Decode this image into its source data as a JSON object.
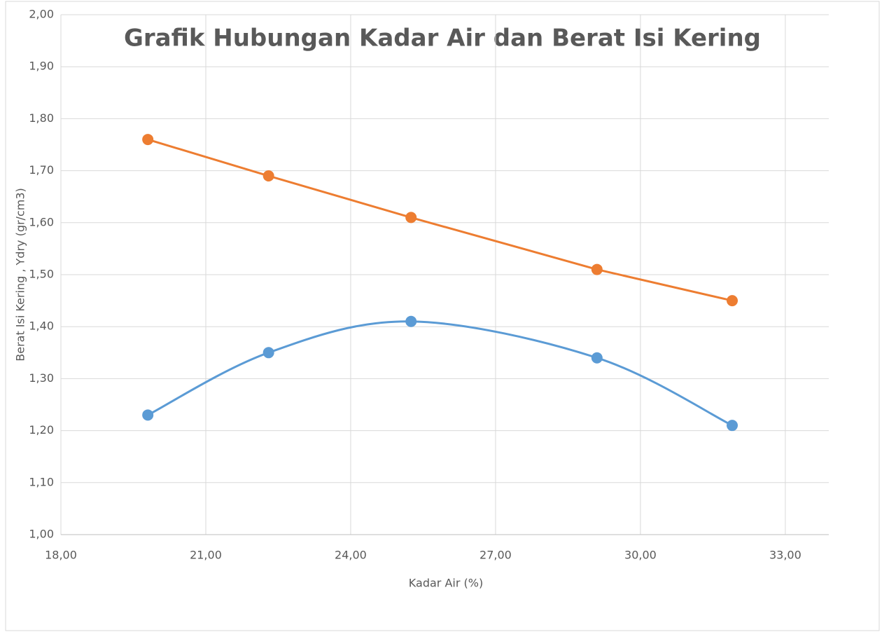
{
  "chart_data": {
    "type": "scatter",
    "title": "Grafik Hubungan Kadar Air dan Berat Isi Kering",
    "x_label": "Kadar Air (%)",
    "y_label": "Berat Isi Kering , Ydry (gr/cm3)",
    "series": [
      {
        "color": "#ed7d31",
        "smooth": false,
        "x": [
          19.8,
          22.3,
          25.25,
          29.1,
          31.9
        ],
        "values": [
          1.76,
          1.69,
          1.61,
          1.51,
          1.45
        ]
      },
      {
        "color": "#5b9bd5",
        "smooth": true,
        "x": [
          19.8,
          22.3,
          25.25,
          29.1,
          31.9
        ],
        "values": [
          1.23,
          1.35,
          1.41,
          1.34,
          1.21
        ]
      }
    ],
    "xlim": [
      18,
      33.9
    ],
    "xticks": [
      {
        "value": 18,
        "label": "18,00"
      },
      {
        "value": 21,
        "label": "21,00"
      },
      {
        "value": 24,
        "label": "24,00"
      },
      {
        "value": 27,
        "label": "27,00"
      },
      {
        "value": 30,
        "label": "30,00"
      },
      {
        "value": 33,
        "label": "33,00"
      }
    ],
    "ylim": [
      1,
      2
    ],
    "yticks": [
      {
        "value": 1,
        "label": "1,00"
      },
      {
        "value": 1.1,
        "label": "1,10"
      },
      {
        "value": 1.2,
        "label": "1,20"
      },
      {
        "value": 1.3,
        "label": "1,30"
      },
      {
        "value": 1.4,
        "label": "1,40"
      },
      {
        "value": 1.5,
        "label": "1,50"
      },
      {
        "value": 1.6,
        "label": "1,60"
      },
      {
        "value": 1.7,
        "label": "1,70"
      },
      {
        "value": 1.8,
        "label": "1,80"
      },
      {
        "value": 1.9,
        "label": "1,90"
      },
      {
        "value": 2,
        "label": "2,00"
      }
    ],
    "grid": true
  }
}
